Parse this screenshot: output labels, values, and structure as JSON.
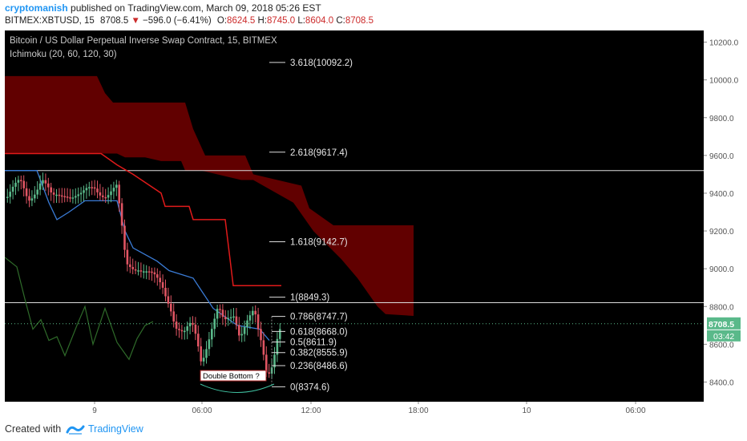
{
  "header": {
    "author": "cryptomanish",
    "published_text": " published on TradingView.com, March 09, 2018 05:26 EST",
    "symbol_line": "BITMEX:XBTUSD, 15",
    "last_price": "8708.5",
    "change_arrow": "▼",
    "change": "−596.0 (−6.41%)",
    "o_label": "O:",
    "o_value": "8624.5",
    "h_label": "H:",
    "h_value": "8745.0",
    "l_label": "L:",
    "l_value": "8604.0",
    "c_label": "C:",
    "c_value": "8708.5"
  },
  "chart_data": {
    "type": "candlestick",
    "title": "Bitcoin / US Dollar Perpetual Inverse Swap Contract, 15, BITMEX",
    "indicator": "Ichimoku (20, 60, 120, 30)",
    "ylim": [
      8300,
      10220
    ],
    "y_ticks": [
      "10200.0",
      "10000.0",
      "9800.0",
      "9600.0",
      "9400.0",
      "9200.0",
      "9000.0",
      "8800.0",
      "8600.0",
      "8400.0"
    ],
    "x_ticks": [
      "9",
      "06:00",
      "12:00",
      "18:00",
      "10",
      "06:00"
    ],
    "last_price_label": "8708.5",
    "countdown_label": "03:42",
    "annotation": "Double Bottom ?",
    "fib_levels": [
      {
        "label": "3.618(10092.2)",
        "value": 10092.2
      },
      {
        "label": "2.618(9617.4)",
        "value": 9617.4
      },
      {
        "label": "1.618(9142.7)",
        "value": 9142.7
      },
      {
        "label": "1(8849.3)",
        "value": 8849.3
      },
      {
        "label": "0.786(8747.7)",
        "value": 8747.7
      },
      {
        "label": "0.618(8668.0)",
        "value": 8668.0
      },
      {
        "label": "0.5(8611.9)",
        "value": 8611.9
      },
      {
        "label": "0.382(8555.9)",
        "value": 8555.9
      },
      {
        "label": "0.236(8486.6)",
        "value": 8486.6
      },
      {
        "label": "0(8374.6)",
        "value": 8374.6
      }
    ],
    "horizontal_lines": [
      9520,
      8820
    ],
    "colors": {
      "background": "#000000",
      "up": "#5ab98a",
      "down": "#e05563",
      "cloud": "#6b0000",
      "base_line": "#e01a1a",
      "conversion_line": "#3a7bd5",
      "lagging_line": "#2f6b2a",
      "last_price": "#5ab98a"
    }
  },
  "footer": {
    "created_with": "Created with",
    "brand": "TradingView"
  }
}
